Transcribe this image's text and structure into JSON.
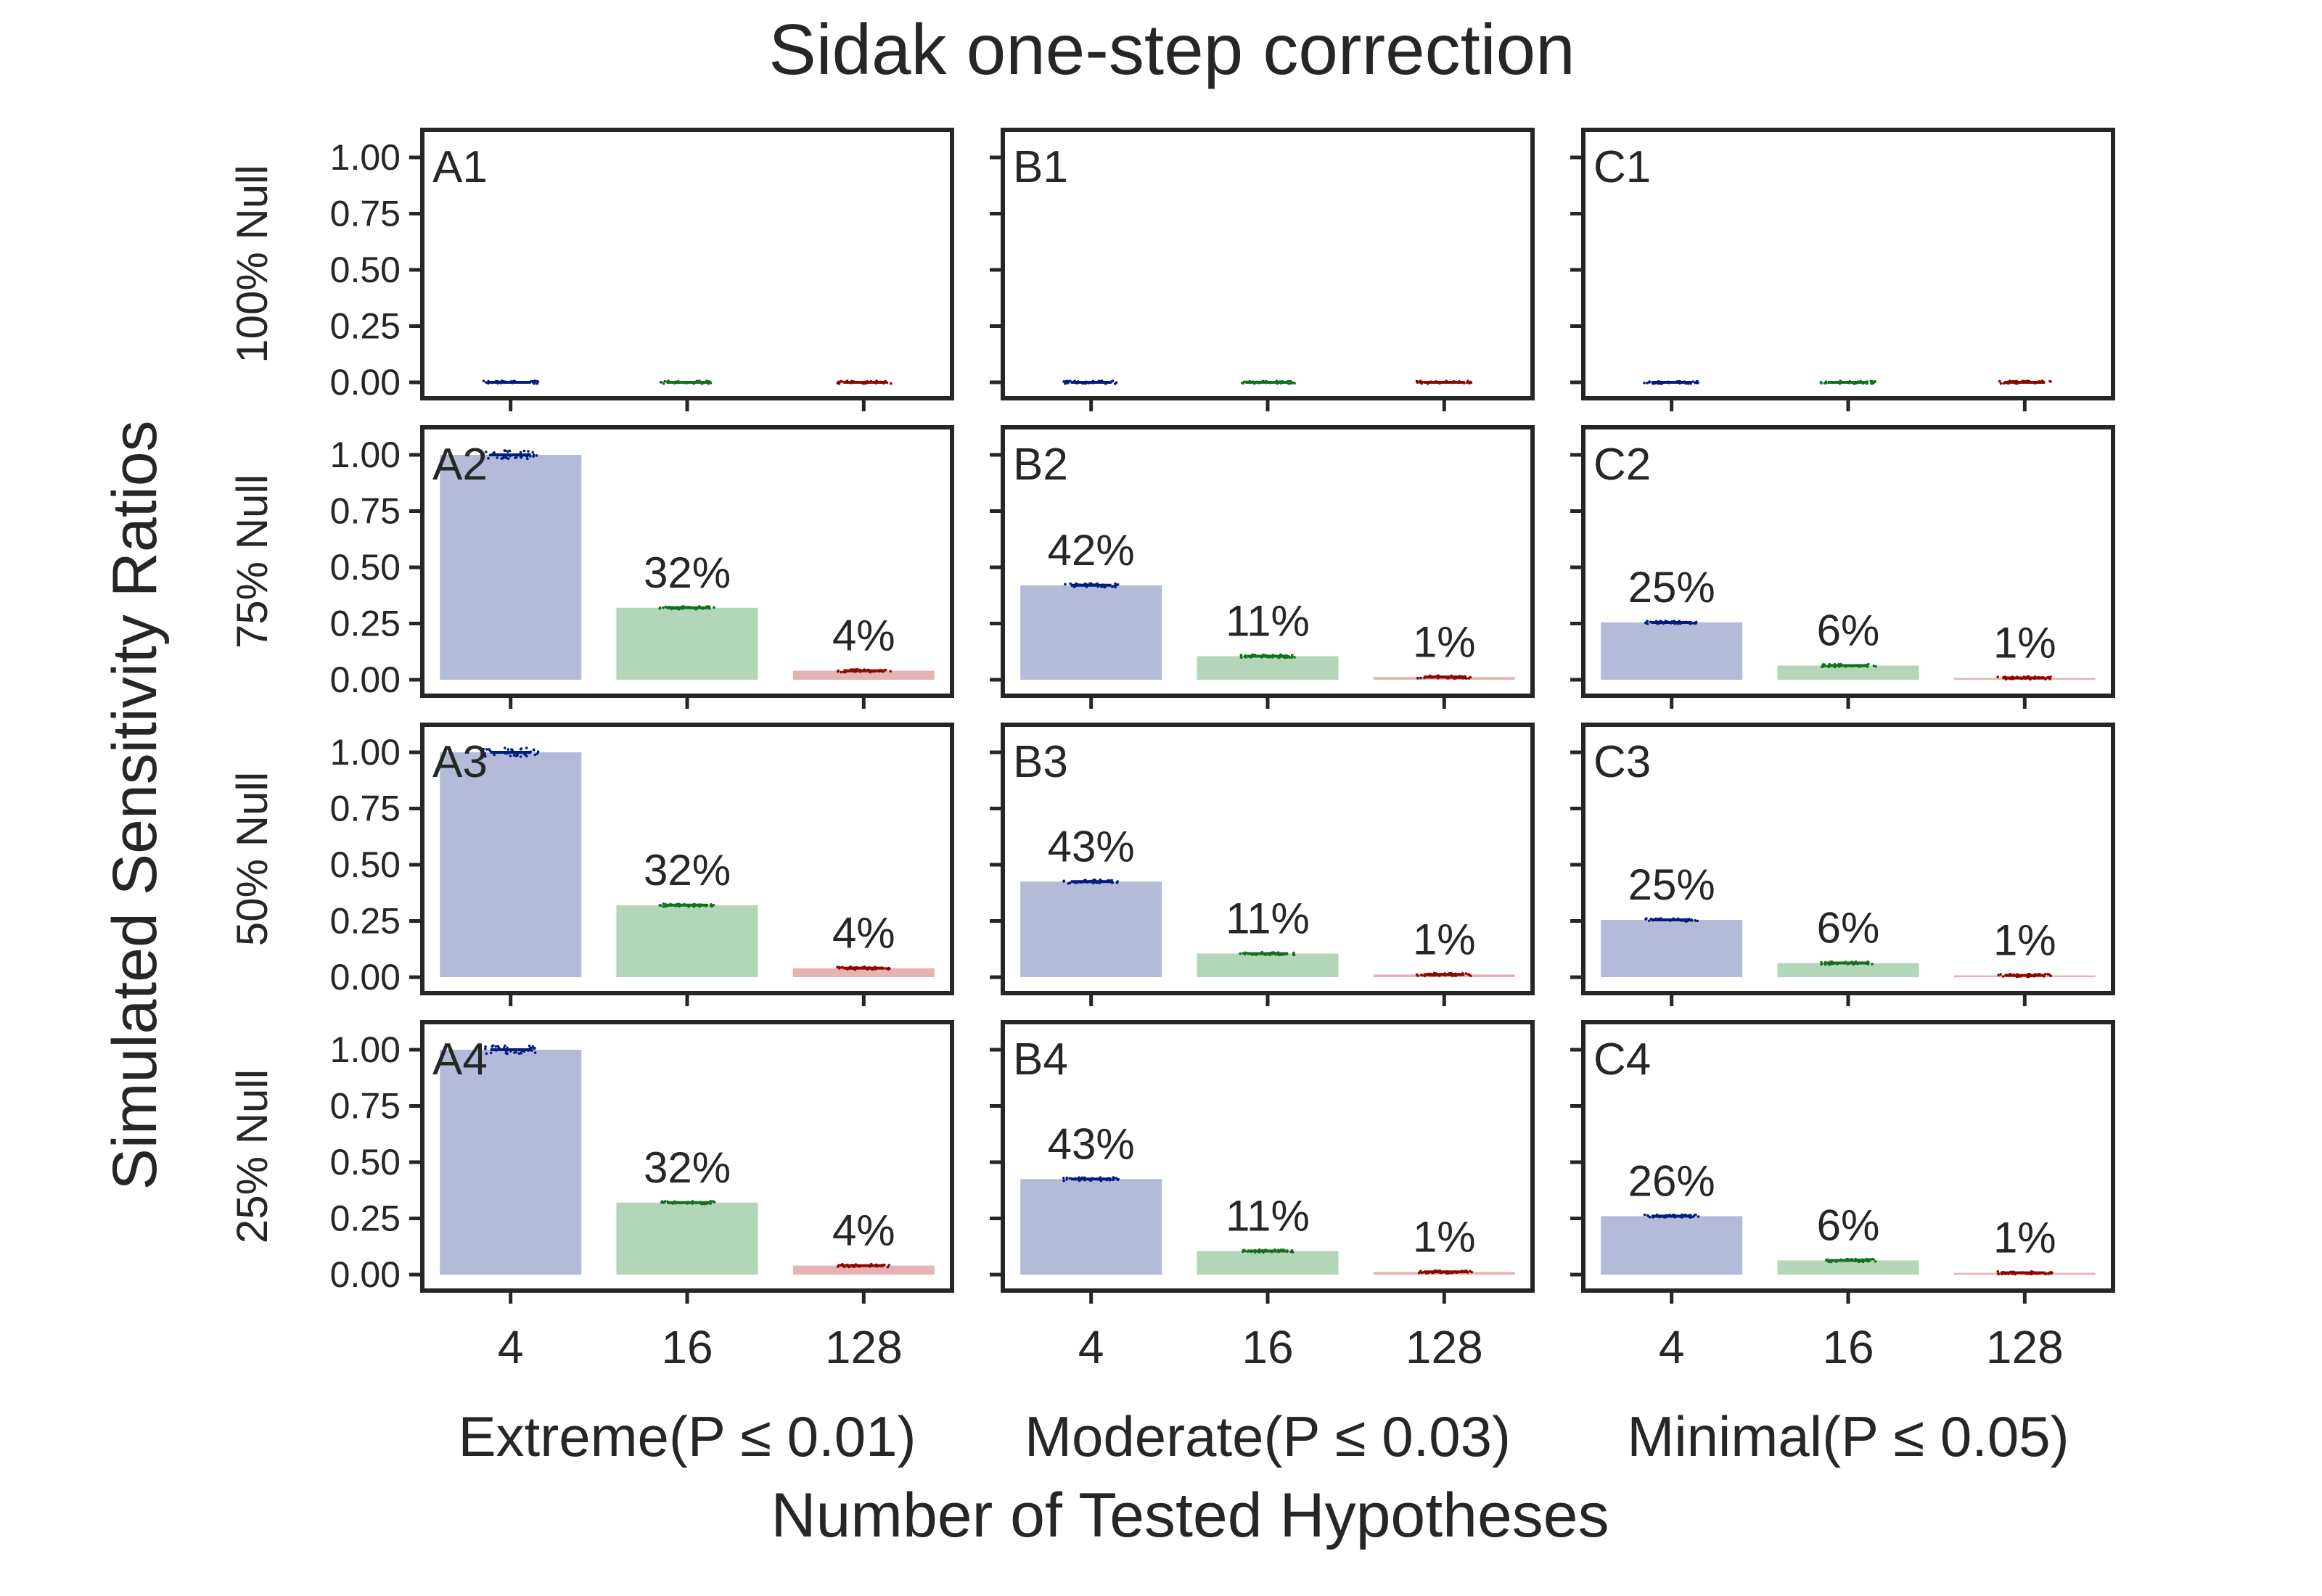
{
  "chart_data": {
    "type": "bar",
    "title": "Sidak one-step correction",
    "ylabel": "Simulated Sensitivity Ratios",
    "xlabel": "Number of Tested Hypotheses",
    "categories": [
      "4",
      "16",
      "128"
    ],
    "ylim": [
      0,
      1.05
    ],
    "yticks": [
      "0.00",
      "0.25",
      "0.50",
      "0.75",
      "1.00"
    ],
    "ytick_values": [
      0,
      0.25,
      0.5,
      0.75,
      1.0
    ],
    "bar_colors": [
      "#b3bbd9",
      "#b3d6b9",
      "#e5b3b3"
    ],
    "point_colors": [
      "#001c7f",
      "#12711c",
      "#8c0800"
    ],
    "grid": false,
    "columns": [
      {
        "label": "Extreme(P ≤ 0.01)"
      },
      {
        "label": "Moderate(P ≤ 0.03)"
      },
      {
        "label": "Minimal(P ≤ 0.05)"
      }
    ],
    "rows": [
      {
        "label": "100% Null"
      },
      {
        "label": "75% Null"
      },
      {
        "label": "50% Null"
      },
      {
        "label": "25% Null"
      }
    ],
    "panels": [
      {
        "id": "A1",
        "values": [
          0,
          0,
          0
        ],
        "labels": [
          "",
          "",
          ""
        ]
      },
      {
        "id": "B1",
        "values": [
          0,
          0,
          0
        ],
        "labels": [
          "",
          "",
          ""
        ]
      },
      {
        "id": "C1",
        "values": [
          0,
          0,
          0
        ],
        "labels": [
          "",
          "",
          ""
        ]
      },
      {
        "id": "A2",
        "values": [
          1.0,
          0.32,
          0.04
        ],
        "labels": [
          "",
          "32%",
          "4%"
        ]
      },
      {
        "id": "B2",
        "values": [
          0.42,
          0.105,
          0.012
        ],
        "labels": [
          "42%",
          "11%",
          "1%"
        ]
      },
      {
        "id": "C2",
        "values": [
          0.255,
          0.063,
          0.008
        ],
        "labels": [
          "25%",
          "6%",
          "1%"
        ]
      },
      {
        "id": "A3",
        "values": [
          1.0,
          0.32,
          0.04
        ],
        "labels": [
          "",
          "32%",
          "4%"
        ]
      },
      {
        "id": "B3",
        "values": [
          0.425,
          0.105,
          0.012
        ],
        "labels": [
          "43%",
          "11%",
          "1%"
        ]
      },
      {
        "id": "C3",
        "values": [
          0.255,
          0.063,
          0.008
        ],
        "labels": [
          "25%",
          "6%",
          "1%"
        ]
      },
      {
        "id": "A4",
        "values": [
          1.0,
          0.32,
          0.04
        ],
        "labels": [
          "",
          "32%",
          "4%"
        ]
      },
      {
        "id": "B4",
        "values": [
          0.425,
          0.105,
          0.012
        ],
        "labels": [
          "43%",
          "11%",
          "1%"
        ]
      },
      {
        "id": "C4",
        "values": [
          0.26,
          0.063,
          0.008
        ],
        "labels": [
          "26%",
          "6%",
          "1%"
        ]
      }
    ]
  }
}
